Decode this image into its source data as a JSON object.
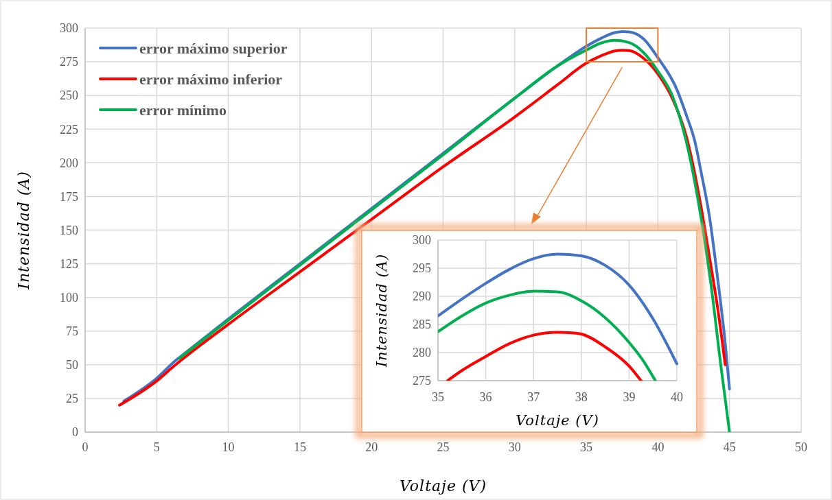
{
  "chart_data": [
    {
      "type": "line",
      "xlabel": "Voltaje (V)",
      "ylabel": "Intensidad (A)",
      "xlim": [
        0,
        50
      ],
      "ylim": [
        0,
        300
      ],
      "xticks": [
        0,
        5,
        10,
        15,
        20,
        25,
        30,
        35,
        40,
        45,
        50
      ],
      "yticks": [
        0,
        25,
        50,
        75,
        100,
        125,
        150,
        175,
        200,
        225,
        250,
        275,
        300
      ],
      "grid": true,
      "legend": "top left",
      "line_style": "solid",
      "marker": "none",
      "series": [
        {
          "name": "error máximo superior",
          "color": "#4472c4",
          "x": [
            2.7,
            5,
            6.3,
            6.6,
            10,
            15,
            20,
            25,
            30,
            33,
            35,
            36,
            37,
            37.5,
            38,
            39,
            40,
            41.3,
            42,
            42.6,
            43,
            43.6,
            44.1,
            44.7,
            45
          ],
          "values": [
            23,
            40,
            53,
            55.5,
            84,
            125,
            166,
            207,
            248,
            272,
            286.5,
            292.3,
            296.7,
            297.5,
            297.2,
            292,
            278,
            255,
            235,
            215,
            194,
            160,
            120,
            66,
            32
          ]
        },
        {
          "name": "error máximo inferior",
          "color": "#ff0000",
          "x": [
            2.4,
            5,
            6.2,
            10,
            15,
            20,
            25,
            30,
            33,
            35,
            36,
            37,
            37.5,
            38,
            39,
            40,
            41,
            42,
            43,
            43.6,
            44.2,
            44.7
          ],
          "values": [
            20,
            38,
            49,
            80,
            119,
            158,
            197,
            234,
            258,
            274,
            279.3,
            283.1,
            283.6,
            283.3,
            277.6,
            266,
            248,
            219,
            168,
            130,
            90,
            50
          ]
        },
        {
          "name": "error mínimo",
          "color": "#00b050",
          "x": [
            6.6,
            10,
            15,
            20,
            25,
            30,
            33,
            35,
            36,
            37,
            38,
            39,
            40,
            41,
            42,
            43,
            43.7,
            44.4,
            45
          ],
          "values": [
            55,
            83,
            124,
            165,
            206,
            248,
            272,
            283.7,
            288.8,
            290.9,
            289.2,
            281.8,
            268,
            250,
            215,
            160,
            110,
            49,
            0
          ]
        }
      ]
    },
    {
      "type": "line",
      "xlabel": "Voltaje (V)",
      "ylabel": "Intensidad (A)",
      "xlim": [
        35,
        40
      ],
      "ylim": [
        275,
        300
      ],
      "xticks": [
        35,
        36,
        37,
        38,
        39,
        40
      ],
      "yticks": [
        275,
        280,
        285,
        290,
        295,
        300
      ],
      "grid": true,
      "line_style": "solid",
      "marker": "none",
      "series": [
        {
          "color": "#4472c4",
          "x": [
            35,
            35.5,
            36,
            36.5,
            37,
            37.5,
            38,
            38.5,
            39,
            39.5,
            40
          ],
          "values": [
            286.5,
            289.5,
            292.3,
            294.8,
            296.7,
            297.5,
            297.2,
            295.5,
            292,
            286,
            278
          ]
        },
        {
          "color": "#ff0000",
          "x": [
            35.2,
            35.5,
            36,
            36.5,
            37,
            37.5,
            37.8,
            38,
            38.5,
            39,
            39.25
          ],
          "values": [
            275,
            276.8,
            279.3,
            281.6,
            283.1,
            283.6,
            283.5,
            283.3,
            281,
            277.6,
            275
          ]
        },
        {
          "color": "#00b050",
          "x": [
            35,
            35.5,
            36,
            36.5,
            37,
            37.5,
            38,
            38.5,
            39,
            39.3,
            39.55
          ],
          "values": [
            283.7,
            286.5,
            288.8,
            290.2,
            290.9,
            290.8,
            289.2,
            286.2,
            281.8,
            278.5,
            275
          ]
        }
      ]
    }
  ]
}
